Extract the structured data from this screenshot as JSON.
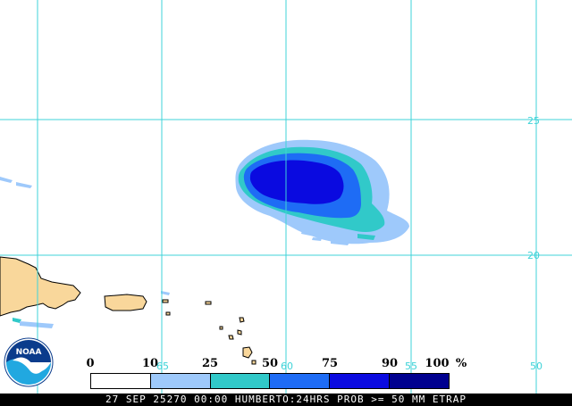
{
  "map": {
    "grid_lat_labels": [
      "25",
      "20"
    ],
    "grid_lon_labels": [
      "65",
      "60",
      "55",
      "50"
    ],
    "grid_color": "#3fd3d8",
    "land_color": "#f9d79b",
    "storm_name": "HUMBERTO"
  },
  "legend": {
    "ticks": [
      "0",
      "10",
      "25",
      "50",
      "75",
      "90",
      "100"
    ],
    "unit": "%",
    "colors": [
      "#ffffff",
      "#9ec9fb",
      "#31c9c9",
      "#1e6cf5",
      "#0a0ae0",
      "#00008f"
    ]
  },
  "footer": {
    "text": "27 SEP 25270 00:00 HUMBERTO:24HRS PROB >= 50 MM ETRAP"
  },
  "logo": {
    "text": "NOAA",
    "icon": "noaa-logo-icon"
  }
}
